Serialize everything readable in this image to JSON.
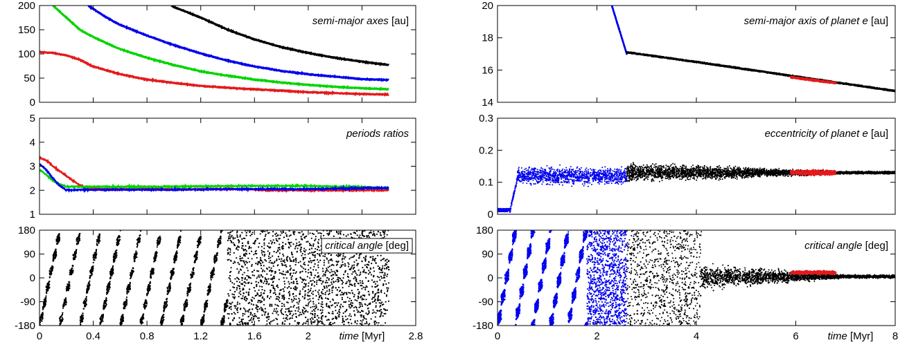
{
  "chart_data": [
    {
      "type": "line",
      "panel": "left-top",
      "annotation": {
        "italic": "semi-major axes",
        "unit": "[au]"
      },
      "xlim": [
        0,
        2.8
      ],
      "ylim": [
        0,
        200
      ],
      "yticks": [
        0,
        50,
        100,
        150,
        200
      ],
      "xticks": [
        0,
        0.4,
        0.8,
        1.2,
        1.6,
        2,
        2.4,
        2.8
      ],
      "show_xtick_labels": false,
      "series": [
        {
          "color": "#e41a1c",
          "x": [
            0,
            0.1,
            0.2,
            0.3,
            0.4,
            0.6,
            0.8,
            1.0,
            1.2,
            1.4,
            1.6,
            1.8,
            2.0,
            2.2,
            2.4,
            2.6
          ],
          "y": [
            104,
            102,
            97,
            88,
            74,
            58,
            47,
            40,
            34,
            30,
            27,
            24,
            21,
            19,
            17,
            16
          ]
        },
        {
          "color": "#00d400",
          "x": [
            0.1,
            0.2,
            0.3,
            0.4,
            0.5,
            0.6,
            0.8,
            1.0,
            1.2,
            1.4,
            1.6,
            1.8,
            2.0,
            2.2,
            2.4,
            2.6
          ],
          "y": [
            200,
            175,
            150,
            135,
            122,
            110,
            92,
            77,
            64,
            55,
            47,
            41,
            36,
            32,
            29,
            27
          ]
        },
        {
          "color": "#0000ee",
          "x": [
            0.36,
            0.4,
            0.5,
            0.6,
            0.8,
            1.0,
            1.2,
            1.4,
            1.6,
            1.8,
            2.0,
            2.2,
            2.4,
            2.6
          ],
          "y": [
            200,
            193,
            175,
            160,
            138,
            118,
            101,
            86,
            74,
            65,
            58,
            53,
            48,
            46
          ]
        },
        {
          "color": "#000000",
          "x": [
            0.98,
            1.0,
            1.2,
            1.4,
            1.6,
            1.8,
            2.0,
            2.2,
            2.4,
            2.6
          ],
          "y": [
            200,
            197,
            175,
            150,
            130,
            114,
            102,
            92,
            84,
            77
          ]
        }
      ]
    },
    {
      "type": "line",
      "panel": "left-middle",
      "annotation": {
        "italic": "periods ratios",
        "unit": ""
      },
      "xlim": [
        0,
        2.8
      ],
      "ylim": [
        1,
        5
      ],
      "yticks": [
        1,
        2,
        3,
        4,
        5
      ],
      "xticks": [
        0,
        0.4,
        0.8,
        1.2,
        1.6,
        2,
        2.4,
        2.8
      ],
      "show_xtick_labels": false,
      "series": [
        {
          "color": "#e41a1c",
          "x": [
            0,
            0.05,
            0.1,
            0.15,
            0.2,
            0.25,
            0.3,
            0.35,
            0.5,
            1.0,
            1.5,
            1.7,
            2.0,
            2.3,
            2.6
          ],
          "y": [
            3.35,
            3.25,
            3.0,
            2.8,
            2.6,
            2.4,
            2.2,
            2.08,
            2.05,
            2.05,
            2.05,
            2.0,
            2.0,
            2.0,
            2.0
          ]
        },
        {
          "color": "#00d400",
          "x": [
            0,
            0.05,
            0.1,
            0.15,
            0.2,
            0.3,
            0.5,
            1.0,
            1.5,
            2.0,
            2.3,
            2.6
          ],
          "y": [
            2.85,
            2.65,
            2.4,
            2.25,
            2.15,
            2.15,
            2.15,
            2.15,
            2.18,
            2.18,
            2.15,
            2.1
          ]
        },
        {
          "color": "#0000ee",
          "x": [
            0,
            0.05,
            0.1,
            0.15,
            0.2,
            0.3,
            0.5,
            1.0,
            1.5,
            2.0,
            2.3,
            2.6
          ],
          "y": [
            3.1,
            2.85,
            2.5,
            2.2,
            2.0,
            2.02,
            2.02,
            2.02,
            2.05,
            2.05,
            2.08,
            2.1
          ]
        }
      ]
    },
    {
      "type": "scatter",
      "panel": "left-bottom",
      "annotation": {
        "italic": "critical angle",
        "unit": "[deg]",
        "boxed": true
      },
      "xlim": [
        0,
        2.8
      ],
      "ylim": [
        -180,
        180
      ],
      "yticks": [
        -180,
        -90,
        0,
        90,
        180
      ],
      "ytick_labels": [
        "-180",
        "-90",
        "0",
        "90",
        "180"
      ],
      "xticks": [
        0,
        0.4,
        0.8,
        1.2,
        1.6,
        2,
        2.4,
        2.8
      ],
      "xtick_labels": [
        "0",
        "0.4",
        "0.8",
        "1.2",
        "1.6",
        "2",
        "",
        "2.8"
      ],
      "xlabel": {
        "italic": "time",
        "unit": "[Myr]"
      },
      "series": [
        {
          "color": "#000000",
          "x_range": [
            0,
            2.6
          ],
          "pattern": "circulating"
        }
      ]
    },
    {
      "type": "scatter",
      "panel": "right-top",
      "annotation": {
        "italic": "semi-major axis of planet e",
        "unit": "[au]"
      },
      "xlim": [
        0,
        8
      ],
      "ylim": [
        14,
        20
      ],
      "yticks": [
        14,
        16,
        18,
        20
      ],
      "xticks": [
        0,
        2,
        4,
        6,
        8
      ],
      "show_xtick_labels": false,
      "series": [
        {
          "color": "#0000ee",
          "x": [
            2.3,
            2.45,
            2.6
          ],
          "y": [
            20,
            18.5,
            17.0
          ]
        },
        {
          "color": "#000000",
          "x": [
            2.6,
            4,
            6,
            8
          ],
          "y": [
            17.1,
            16.5,
            15.6,
            14.7
          ]
        },
        {
          "color": "#e41a1c",
          "x": [
            5.9,
            6.8
          ],
          "y": [
            15.55,
            15.2
          ]
        }
      ]
    },
    {
      "type": "scatter",
      "panel": "right-middle",
      "annotation": {
        "italic": "eccentricity of planet e",
        "unit": "[au]"
      },
      "xlim": [
        0,
        8
      ],
      "ylim": [
        0,
        0.3
      ],
      "yticks": [
        0,
        0.1,
        0.2,
        0.3
      ],
      "ytick_labels": [
        "0",
        "0.1",
        "0.2",
        "0.3"
      ],
      "xticks": [
        0,
        2,
        4,
        6,
        8
      ],
      "show_xtick_labels": false,
      "series": [
        {
          "color": "#0000ee",
          "x_range": [
            0,
            2.6
          ],
          "pattern": "ecc-blue"
        },
        {
          "color": "#000000",
          "x_range": [
            2.6,
            8
          ],
          "pattern": "ecc-black"
        },
        {
          "color": "#e41a1c",
          "x_range": [
            5.9,
            6.8
          ],
          "center": 0.13,
          "spread": 0.01
        }
      ]
    },
    {
      "type": "scatter",
      "panel": "right-bottom",
      "annotation": {
        "italic": "critical angle",
        "unit": "[deg]"
      },
      "xlim": [
        0,
        8
      ],
      "ylim": [
        -180,
        180
      ],
      "yticks": [
        -180,
        -90,
        0,
        90,
        180
      ],
      "ytick_labels": [
        "-180",
        "-90",
        "0",
        "90",
        "180"
      ],
      "xticks": [
        0,
        2,
        4,
        6,
        8
      ],
      "xtick_labels": [
        "0",
        "2",
        "4",
        "6",
        "8"
      ],
      "xlabel": {
        "italic": "time",
        "unit": "[Myr]"
      },
      "series": [
        {
          "color": "#0000ee",
          "x_range": [
            0,
            2.6
          ],
          "pattern": "circulating"
        },
        {
          "color": "#000000",
          "x_range": [
            2.6,
            8
          ],
          "pattern": "transition"
        },
        {
          "color": "#e41a1c",
          "x_range": [
            5.9,
            6.8
          ],
          "center": 20,
          "spread": 8
        }
      ]
    }
  ]
}
